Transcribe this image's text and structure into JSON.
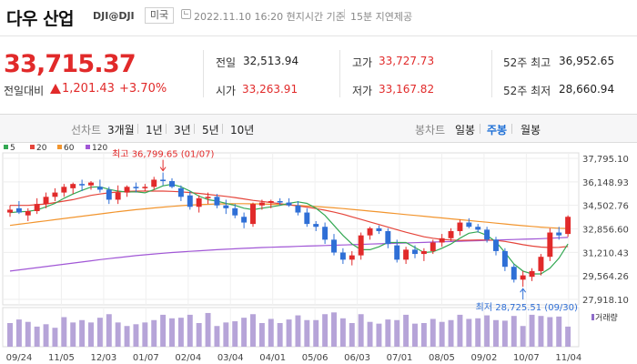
{
  "header": {
    "title": "다우 산업",
    "code": "DJI@DJI",
    "market": "미국",
    "time": "2022.11.10 16:20 현지시간 기준",
    "delay": "15분 지연제공"
  },
  "quote": {
    "price": "33,715.37",
    "change_label": "전일대비",
    "change": "1,201.43",
    "change_pct": "+3.70%",
    "stats": [
      {
        "label": "전일",
        "value": "32,513.94"
      },
      {
        "label": "시가",
        "value": "33,263.91"
      },
      {
        "label": "고가",
        "value": "33,727.73"
      },
      {
        "label": "저가",
        "value": "33,167.82"
      },
      {
        "label": "52주 최고",
        "value": "36,952.65"
      },
      {
        "label": "52주 최저",
        "value": "28,660.94"
      }
    ]
  },
  "periods": {
    "line_chart": "선차트",
    "line_options": [
      "3개월",
      "1년",
      "3년",
      "5년",
      "10년"
    ],
    "candle_chart": "봉차트",
    "candle_options": [
      "일봉",
      "주봉",
      "월봉"
    ],
    "active": "주봉"
  },
  "legend": [
    {
      "label": "5",
      "color": "#34a853"
    },
    {
      "label": "20",
      "color": "#e5453b"
    },
    {
      "label": "60",
      "color": "#f2952e"
    },
    {
      "label": "120",
      "color": "#a157d6"
    }
  ],
  "colors": {
    "up": "#e12a2a",
    "down": "#2f6fd6"
  },
  "chart_data": {
    "type": "candlestick",
    "y_ticks": [
      "37,795.10",
      "36,148.93",
      "34,502.76",
      "32,856.60",
      "31,210.43",
      "29,564.26",
      "27,918.10"
    ],
    "ylim": [
      27918.1,
      37795.1
    ],
    "x_ticks": [
      "09/24",
      "11/05",
      "12/03",
      "01/07",
      "02/04",
      "03/04",
      "04/01",
      "05/06",
      "06/03",
      "07/01",
      "08/05",
      "09/02",
      "10/07",
      "11/04"
    ],
    "high_annotation": "최고 36,799.65 (01/07)",
    "low_annotation": "최저 28,725.51 (09/30)",
    "volume_label": "거래량",
    "candles": [
      {
        "o": 34000,
        "h": 34500,
        "l": 33700,
        "c": 34200
      },
      {
        "o": 34300,
        "h": 34800,
        "l": 33900,
        "c": 34000
      },
      {
        "o": 33800,
        "h": 34300,
        "l": 33400,
        "c": 34100
      },
      {
        "o": 34100,
        "h": 35000,
        "l": 33900,
        "c": 34600
      },
      {
        "o": 34600,
        "h": 35400,
        "l": 34300,
        "c": 35100
      },
      {
        "o": 35100,
        "h": 35700,
        "l": 34800,
        "c": 35400
      },
      {
        "o": 35400,
        "h": 36000,
        "l": 35100,
        "c": 35800
      },
      {
        "o": 35700,
        "h": 36100,
        "l": 35300,
        "c": 36000
      },
      {
        "o": 36000,
        "h": 36300,
        "l": 35500,
        "c": 35900
      },
      {
        "o": 35900,
        "h": 36200,
        "l": 35600,
        "c": 36100
      },
      {
        "o": 35800,
        "h": 36300,
        "l": 35400,
        "c": 35600
      },
      {
        "o": 35600,
        "h": 35800,
        "l": 34600,
        "c": 34900
      },
      {
        "o": 34900,
        "h": 35900,
        "l": 34600,
        "c": 35400
      },
      {
        "o": 35400,
        "h": 35900,
        "l": 35100,
        "c": 35800
      },
      {
        "o": 35800,
        "h": 36100,
        "l": 35400,
        "c": 35700
      },
      {
        "o": 35700,
        "h": 36000,
        "l": 35500,
        "c": 35800
      },
      {
        "o": 35800,
        "h": 36500,
        "l": 35600,
        "c": 36300
      },
      {
        "o": 36300,
        "h": 36800,
        "l": 35900,
        "c": 36200
      },
      {
        "o": 36200,
        "h": 36400,
        "l": 35700,
        "c": 35800
      },
      {
        "o": 35700,
        "h": 35900,
        "l": 34800,
        "c": 35100
      },
      {
        "o": 35200,
        "h": 35500,
        "l": 34200,
        "c": 34400
      },
      {
        "o": 34400,
        "h": 35200,
        "l": 34000,
        "c": 35000
      },
      {
        "o": 35000,
        "h": 35400,
        "l": 34600,
        "c": 35100
      },
      {
        "o": 35100,
        "h": 35300,
        "l": 34300,
        "c": 34500
      },
      {
        "o": 34500,
        "h": 34900,
        "l": 33900,
        "c": 34300
      },
      {
        "o": 34300,
        "h": 34600,
        "l": 33600,
        "c": 33800
      },
      {
        "o": 33700,
        "h": 34000,
        "l": 32900,
        "c": 33300
      },
      {
        "o": 33200,
        "h": 34700,
        "l": 33000,
        "c": 34600
      },
      {
        "o": 34500,
        "h": 34900,
        "l": 34200,
        "c": 34700
      },
      {
        "o": 34700,
        "h": 34900,
        "l": 34300,
        "c": 34800
      },
      {
        "o": 34800,
        "h": 35000,
        "l": 34500,
        "c": 34700
      },
      {
        "o": 34700,
        "h": 35000,
        "l": 34400,
        "c": 34500
      },
      {
        "o": 34500,
        "h": 34800,
        "l": 33800,
        "c": 34000
      },
      {
        "o": 34000,
        "h": 34300,
        "l": 33000,
        "c": 33200
      },
      {
        "o": 33200,
        "h": 33400,
        "l": 32700,
        "c": 33000
      },
      {
        "o": 33000,
        "h": 33300,
        "l": 31800,
        "c": 32100
      },
      {
        "o": 32100,
        "h": 32500,
        "l": 31000,
        "c": 31200
      },
      {
        "o": 31200,
        "h": 31500,
        "l": 30400,
        "c": 30700
      },
      {
        "o": 30700,
        "h": 31300,
        "l": 30300,
        "c": 31000
      },
      {
        "o": 31000,
        "h": 32600,
        "l": 30700,
        "c": 32400
      },
      {
        "o": 32400,
        "h": 33000,
        "l": 32100,
        "c": 32900
      },
      {
        "o": 32900,
        "h": 33100,
        "l": 32500,
        "c": 32700
      },
      {
        "o": 32700,
        "h": 32900,
        "l": 31500,
        "c": 31800
      },
      {
        "o": 31700,
        "h": 32100,
        "l": 30500,
        "c": 30700
      },
      {
        "o": 30700,
        "h": 31600,
        "l": 30400,
        "c": 31400
      },
      {
        "o": 31400,
        "h": 31700,
        "l": 30800,
        "c": 31100
      },
      {
        "o": 31100,
        "h": 31500,
        "l": 30600,
        "c": 31300
      },
      {
        "o": 31300,
        "h": 32100,
        "l": 31100,
        "c": 31900
      },
      {
        "o": 31900,
        "h": 32500,
        "l": 31600,
        "c": 32200
      },
      {
        "o": 32200,
        "h": 32900,
        "l": 32000,
        "c": 32700
      },
      {
        "o": 32700,
        "h": 33500,
        "l": 32400,
        "c": 33300
      },
      {
        "o": 33300,
        "h": 33600,
        "l": 32900,
        "c": 33000
      },
      {
        "o": 33000,
        "h": 33200,
        "l": 32600,
        "c": 32800
      },
      {
        "o": 32800,
        "h": 33000,
        "l": 31900,
        "c": 32100
      },
      {
        "o": 32100,
        "h": 32300,
        "l": 31000,
        "c": 31300
      },
      {
        "o": 31300,
        "h": 31500,
        "l": 29900,
        "c": 30200
      },
      {
        "o": 30200,
        "h": 30400,
        "l": 29100,
        "c": 29300
      },
      {
        "o": 29300,
        "h": 29900,
        "l": 28800,
        "c": 29600
      },
      {
        "o": 29500,
        "h": 30100,
        "l": 29200,
        "c": 29900
      },
      {
        "o": 29900,
        "h": 31100,
        "l": 29600,
        "c": 30900
      },
      {
        "o": 30900,
        "h": 32900,
        "l": 30600,
        "c": 32600
      },
      {
        "o": 32600,
        "h": 33000,
        "l": 32100,
        "c": 32400
      },
      {
        "o": 32500,
        "h": 33800,
        "l": 32300,
        "c": 33700
      }
    ],
    "volume": [
      40,
      46,
      42,
      34,
      38,
      32,
      50,
      41,
      45,
      41,
      49,
      55,
      41,
      35,
      38,
      41,
      45,
      54,
      48,
      49,
      54,
      40,
      57,
      35,
      41,
      43,
      49,
      55,
      40,
      47,
      40,
      46,
      53,
      45,
      45,
      55,
      58,
      48,
      40,
      55,
      42,
      39,
      46,
      45,
      54,
      39,
      40,
      47,
      42,
      45,
      54,
      47,
      48,
      53,
      45,
      44,
      52,
      35,
      54,
      52,
      50,
      51,
      34
    ],
    "ma5": [
      34000,
      34050,
      34080,
      34180,
      34400,
      34640,
      35000,
      35300,
      35550,
      35780,
      35800,
      35620,
      35500,
      35440,
      35450,
      35380,
      35600,
      35870,
      35980,
      35800,
      35500,
      35150,
      34900,
      34800,
      34650,
      34500,
      34300,
      34200,
      34300,
      34400,
      34500,
      34650,
      34750,
      34640,
      34300,
      33800,
      33100,
      32400,
      31800,
      31400,
      31400,
      31600,
      31900,
      31900,
      31900,
      31550,
      31200,
      31250,
      31500,
      31800,
      32200,
      32550,
      32650,
      32400,
      31950,
      31200,
      30400,
      29900,
      29700,
      29700,
      30100,
      30800,
      31800
    ],
    "ma20": [
      34500,
      34500,
      34500,
      34550,
      34600,
      34700,
      34800,
      34900,
      35050,
      35200,
      35300,
      35380,
      35440,
      35480,
      35500,
      35500,
      35500,
      35500,
      35480,
      35450,
      35400,
      35340,
      35270,
      35200,
      35130,
      35050,
      34950,
      34850,
      34780,
      34700,
      34620,
      34540,
      34460,
      34380,
      34280,
      34160,
      34030,
      33880,
      33700,
      33520,
      33340,
      33160,
      32980,
      32800,
      32620,
      32460,
      32300,
      32200,
      32120,
      32080,
      32050,
      32060,
      32080,
      32080,
      32050,
      31980,
      31870,
      31750,
      31650,
      31580,
      31550,
      31560,
      31620
    ],
    "ma60": [
      33100,
      33180,
      33260,
      33340,
      33420,
      33500,
      33580,
      33660,
      33740,
      33820,
      33900,
      33980,
      34060,
      34130,
      34200,
      34260,
      34320,
      34380,
      34430,
      34480,
      34520,
      34550,
      34580,
      34600,
      34610,
      34620,
      34620,
      34610,
      34600,
      34580,
      34560,
      34530,
      34500,
      34460,
      34420,
      34380,
      34330,
      34280,
      34220,
      34160,
      34100,
      34040,
      33980,
      33920,
      33860,
      33800,
      33740,
      33680,
      33620,
      33560,
      33500,
      33440,
      33380,
      33320,
      33260,
      33200,
      33140,
      33080,
      33030,
      32980,
      32940,
      32900,
      32880
    ],
    "ma120": [
      29900,
      29980,
      30060,
      30140,
      30220,
      30300,
      30380,
      30460,
      30540,
      30620,
      30700,
      30770,
      30840,
      30910,
      30980,
      31040,
      31100,
      31150,
      31200,
      31240,
      31280,
      31320,
      31360,
      31400,
      31430,
      31460,
      31490,
      31520,
      31550,
      31570,
      31590,
      31610,
      31630,
      31650,
      31670,
      31690,
      31710,
      31730,
      31750,
      31770,
      31790,
      31810,
      31830,
      31850,
      31870,
      31890,
      31910,
      31930,
      31950,
      31970,
      31990,
      32010,
      32030,
      32050,
      32070,
      32090,
      32110,
      32130,
      32150,
      32170,
      32200,
      32230,
      32260
    ]
  }
}
